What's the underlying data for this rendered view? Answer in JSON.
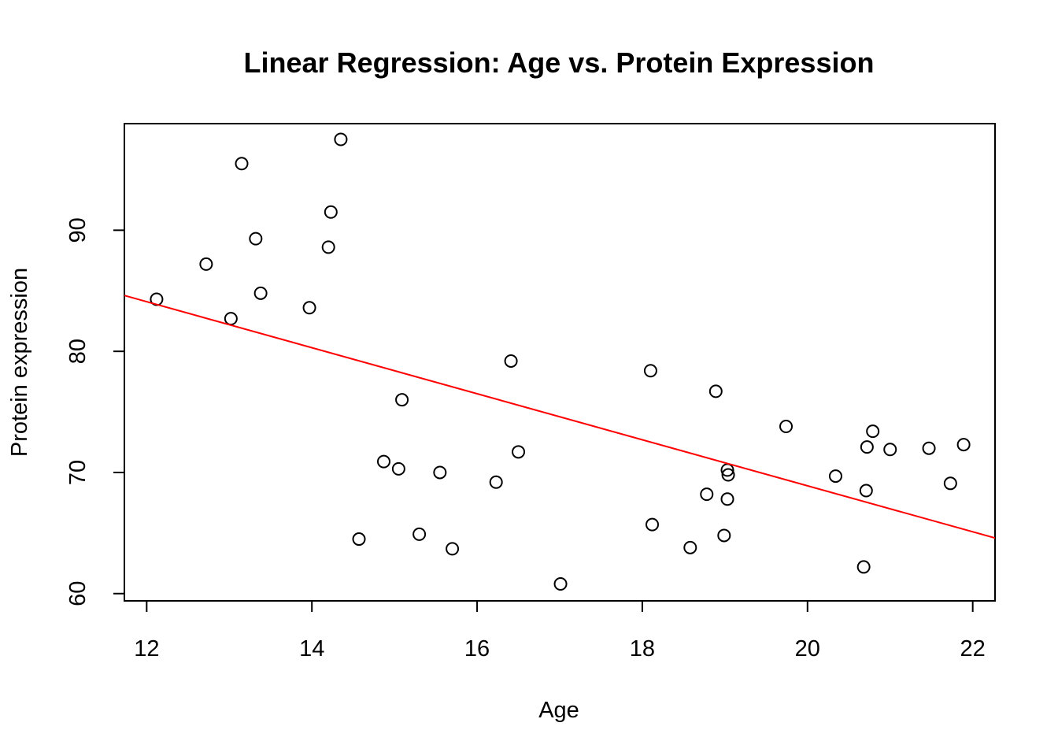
{
  "chart_data": {
    "type": "scatter",
    "title": "Linear Regression: Age vs. Protein Expression",
    "xlabel": "Age",
    "ylabel": "Protein expression",
    "xlim": [
      11.73,
      22.27
    ],
    "ylim": [
      59.4,
      98.8
    ],
    "x_ticks": [
      12,
      14,
      16,
      18,
      20,
      22
    ],
    "y_ticks": [
      60,
      70,
      80,
      90
    ],
    "grid": false,
    "legend": "none",
    "colors": {
      "points": "#000000",
      "fit_line": "#ff0000"
    },
    "points": [
      {
        "x": 12.12,
        "y": 84.3
      },
      {
        "x": 12.72,
        "y": 87.2
      },
      {
        "x": 13.02,
        "y": 82.7
      },
      {
        "x": 13.15,
        "y": 95.5
      },
      {
        "x": 13.32,
        "y": 89.3
      },
      {
        "x": 13.38,
        "y": 84.8
      },
      {
        "x": 13.97,
        "y": 83.6
      },
      {
        "x": 14.2,
        "y": 88.6
      },
      {
        "x": 14.23,
        "y": 91.5
      },
      {
        "x": 14.35,
        "y": 97.5
      },
      {
        "x": 14.57,
        "y": 64.5
      },
      {
        "x": 14.87,
        "y": 70.9
      },
      {
        "x": 15.05,
        "y": 70.3
      },
      {
        "x": 15.09,
        "y": 76.0
      },
      {
        "x": 15.3,
        "y": 64.9
      },
      {
        "x": 15.55,
        "y": 70.0
      },
      {
        "x": 15.7,
        "y": 63.7
      },
      {
        "x": 16.23,
        "y": 69.2
      },
      {
        "x": 16.41,
        "y": 79.2
      },
      {
        "x": 16.5,
        "y": 71.7
      },
      {
        "x": 17.01,
        "y": 60.8
      },
      {
        "x": 18.1,
        "y": 78.4
      },
      {
        "x": 18.12,
        "y": 65.7
      },
      {
        "x": 18.58,
        "y": 63.8
      },
      {
        "x": 18.78,
        "y": 68.2
      },
      {
        "x": 18.89,
        "y": 76.7
      },
      {
        "x": 18.99,
        "y": 64.8
      },
      {
        "x": 19.03,
        "y": 70.2
      },
      {
        "x": 19.03,
        "y": 67.8
      },
      {
        "x": 19.04,
        "y": 69.8
      },
      {
        "x": 19.74,
        "y": 73.8
      },
      {
        "x": 20.34,
        "y": 69.7
      },
      {
        "x": 20.68,
        "y": 62.2
      },
      {
        "x": 20.71,
        "y": 68.5
      },
      {
        "x": 20.72,
        "y": 72.1
      },
      {
        "x": 20.79,
        "y": 73.4
      },
      {
        "x": 21.0,
        "y": 71.9
      },
      {
        "x": 21.47,
        "y": 72.0
      },
      {
        "x": 21.73,
        "y": 69.1
      },
      {
        "x": 21.89,
        "y": 72.3
      }
    ],
    "fit_line": {
      "intercept": 106.9,
      "slope": -1.9
    }
  }
}
